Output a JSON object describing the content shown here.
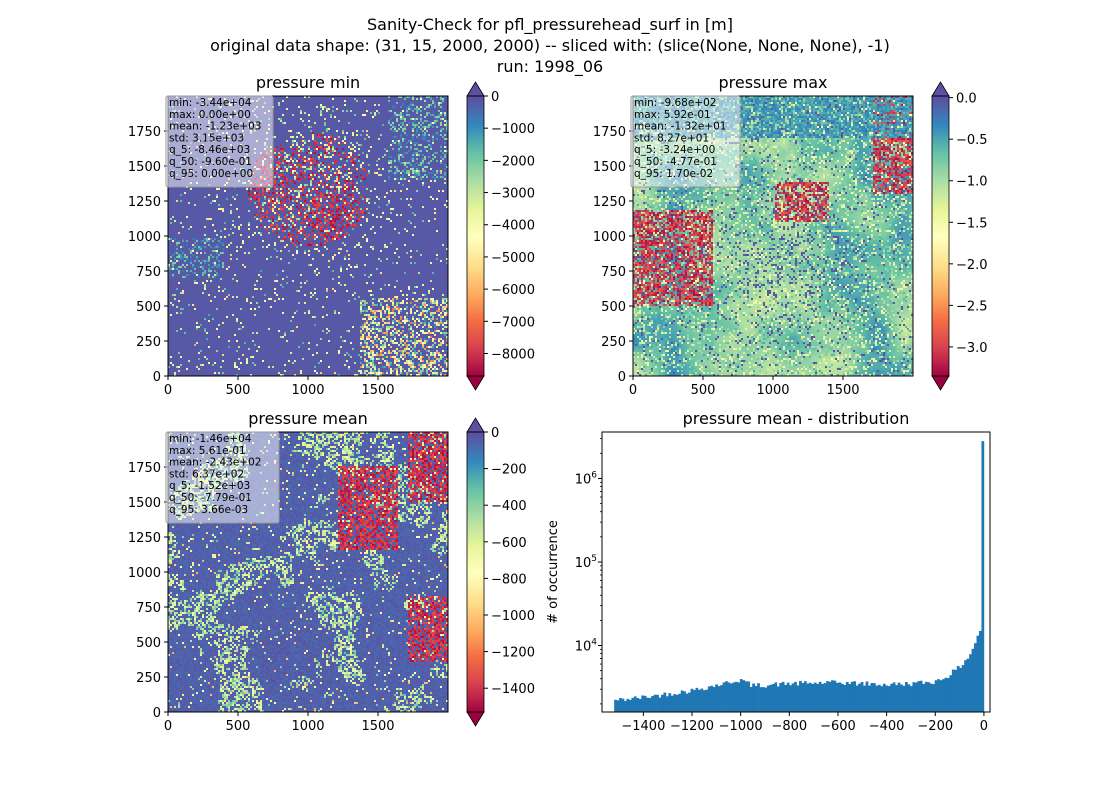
{
  "figure": {
    "title_lines": [
      "Sanity-Check for pfl_pressurehead_surf in [m]",
      "original data shape: (31, 15, 2000, 2000) -- sliced with: (slice(None, None, None), -1)",
      "run: 1998_06"
    ]
  },
  "chart_data": [
    {
      "type": "heatmap",
      "title": "pressure min",
      "xlim": [
        0,
        2000
      ],
      "ylim": [
        0,
        2000
      ],
      "x_ticks": [
        0,
        500,
        1000,
        1500
      ],
      "y_ticks": [
        0,
        250,
        500,
        750,
        1000,
        1250,
        1500,
        1750
      ],
      "colormap": "Spectral",
      "colorbar": {
        "vmin": -8700,
        "vmax": 0,
        "ticks": [
          0,
          -1000,
          -2000,
          -3000,
          -4000,
          -5000,
          -6000,
          -7000,
          -8000
        ],
        "tick_labels": [
          "0",
          "−1000",
          "−2000",
          "−3000",
          "−4000",
          "−5000",
          "−6000",
          "−7000",
          "−8000"
        ],
        "extend": "both"
      },
      "stats": [
        "min: -3.44e+04",
        "max: 0.00e+00",
        "mean: -1.23e+03",
        "std: 3.15e+03",
        "q_5: -8.46e+03",
        "q_50: -9.60e-01",
        "q_95: 0.00e+00"
      ]
    },
    {
      "type": "heatmap",
      "title": "pressure max",
      "xlim": [
        0,
        2000
      ],
      "ylim": [
        0,
        2000
      ],
      "x_ticks": [
        0,
        500,
        1000,
        1500
      ],
      "y_ticks": [
        0,
        250,
        500,
        750,
        1000,
        1250,
        1500,
        1750
      ],
      "colormap": "Spectral",
      "colorbar": {
        "vmin": -3.35,
        "vmax": 0.02,
        "ticks": [
          0.0,
          -0.5,
          -1.0,
          -1.5,
          -2.0,
          -2.5,
          -3.0
        ],
        "tick_labels": [
          "0.0",
          "−0.5",
          "−1.0",
          "−1.5",
          "−2.0",
          "−2.5",
          "−3.0"
        ],
        "extend": "both"
      },
      "stats": [
        "min: -9.68e+02",
        "max: 5.92e-01",
        "mean: -1.32e+01",
        "std: 8.27e+01",
        "q_5: -3.24e+00",
        "q_50: -4.77e-01",
        "q_95: 1.70e-02"
      ]
    },
    {
      "type": "heatmap",
      "title": "pressure mean",
      "xlim": [
        0,
        2000
      ],
      "ylim": [
        0,
        2000
      ],
      "x_ticks": [
        0,
        500,
        1000,
        1500
      ],
      "y_ticks": [
        0,
        250,
        500,
        750,
        1000,
        1250,
        1500,
        1750
      ],
      "colormap": "Spectral",
      "colorbar": {
        "vmin": -1530,
        "vmax": 0,
        "ticks": [
          0,
          -200,
          -400,
          -600,
          -800,
          -1000,
          -1200,
          -1400
        ],
        "tick_labels": [
          "0",
          "−200",
          "−400",
          "−600",
          "−800",
          "−1000",
          "−1200",
          "−1400"
        ],
        "extend": "both"
      },
      "stats": [
        "min: -1.46e+04",
        "max: 5.61e-01",
        "mean: -2.43e+02",
        "std: 6.37e+02",
        "q_5: -1.52e+03",
        "q_50: -7.79e-01",
        "q_95: 3.66e-03"
      ]
    },
    {
      "type": "bar",
      "title": "pressure mean - distribution",
      "ylabel": "# of occurrence",
      "y_scale": "log",
      "xlim": [
        -1570,
        25
      ],
      "ylim": [
        1600,
        3600000
      ],
      "x_ticks": [
        -1400,
        -1200,
        -1000,
        -800,
        -600,
        -400,
        -200,
        0
      ],
      "x_tick_labels": [
        "−1400",
        "−1200",
        "−1000",
        "−800",
        "−600",
        "−400",
        "−200",
        "0"
      ],
      "y_ticks": [
        10000,
        100000,
        1000000
      ],
      "bin_range": [
        -1520,
        0
      ],
      "bar_color": "#1f77b4",
      "anchors": [
        [
          -1520,
          2200
        ],
        [
          -1400,
          2400
        ],
        [
          -1200,
          2900
        ],
        [
          -1050,
          3600
        ],
        [
          -1000,
          3900
        ],
        [
          -950,
          3300
        ],
        [
          -800,
          3500
        ],
        [
          -600,
          3600
        ],
        [
          -400,
          3400
        ],
        [
          -300,
          3500
        ],
        [
          -200,
          3700
        ],
        [
          -150,
          4300
        ],
        [
          -100,
          5500
        ],
        [
          -60,
          7500
        ],
        [
          -40,
          10000
        ],
        [
          -20,
          14000
        ],
        [
          -5,
          18000
        ],
        [
          -2,
          2800000
        ]
      ]
    }
  ]
}
